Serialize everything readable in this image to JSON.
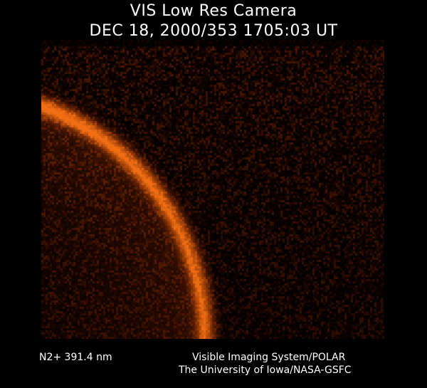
{
  "title": {
    "instrument": "VIS Low Res Camera",
    "timestamp": "DEC 18, 2000/353 1705:03 UT"
  },
  "footer": {
    "wavelength": "N2+ 391.4 nm",
    "credit_line_1": "Visible Imaging System/POLAR",
    "credit_line_2": "The University of Iowa/NASA-GSFC"
  },
  "image": {
    "subject": "auroral-oval-arc",
    "colors": {
      "background": "#000000",
      "arc": "#e07018",
      "noise": "#7a2a08"
    }
  }
}
